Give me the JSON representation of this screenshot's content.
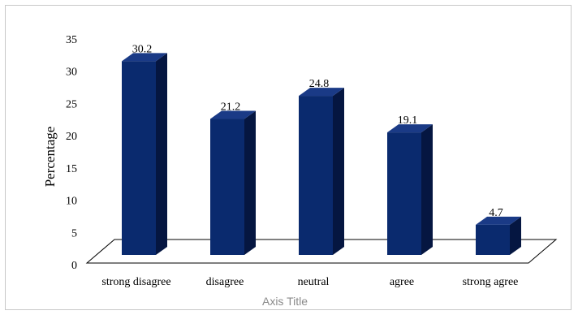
{
  "chart_data": {
    "type": "bar",
    "style": "3d-column",
    "categories": [
      "strong disagree",
      "disagree",
      "neutral",
      "agree",
      "strong agree"
    ],
    "values": [
      30.2,
      21.2,
      24.8,
      19.1,
      4.7
    ],
    "data_labels": [
      "30.2",
      "21.2",
      "24.8",
      "19.1",
      "4.7"
    ],
    "title": "",
    "xlabel": "Axis Title",
    "ylabel": "Percentage",
    "ylim": [
      0,
      35
    ],
    "yticks": [
      "0",
      "5",
      "10",
      "15",
      "20",
      "25",
      "30",
      "35"
    ],
    "grid": false,
    "legend": "none",
    "colors": {
      "front": "#0a2a6e",
      "side": "#051641",
      "top": "#1a3a86",
      "floor": "#000000"
    }
  }
}
